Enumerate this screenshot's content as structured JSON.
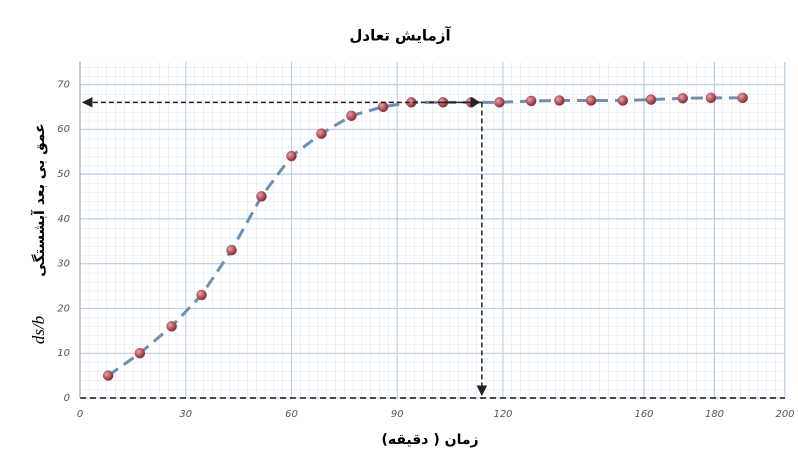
{
  "chart_data": {
    "type": "scatter",
    "title": "آزمایش تعادل",
    "x_label": "زمان ( دقیقه)",
    "y_label": "عمق بی بعد آبشستگی",
    "y_label_symbol": "ds/b",
    "x": [
      8,
      17,
      26,
      34.5,
      43,
      51.5,
      60,
      68.5,
      77,
      86,
      94,
      103,
      111,
      119,
      128,
      136,
      145,
      154,
      162,
      171,
      179,
      188
    ],
    "series": [
      {
        "color": "#a8414f",
        "line_color": "#6f8fb0",
        "values": [
          5,
          10,
          16,
          23,
          33,
          45,
          54,
          59,
          63,
          65,
          66,
          66,
          66,
          66,
          66.3,
          66.4,
          66.4,
          66.4,
          66.6,
          66.9,
          67,
          67
        ]
      }
    ],
    "reference": {
      "x": 114,
      "y": 66
    },
    "xlim": [
      0,
      200
    ],
    "xticks": [
      0,
      30,
      60,
      90,
      120,
      160,
      180,
      200
    ],
    "ylim": [
      0,
      75
    ],
    "yticks": [
      0,
      10,
      20,
      30,
      40,
      50,
      60,
      70
    ],
    "grid": true
  }
}
